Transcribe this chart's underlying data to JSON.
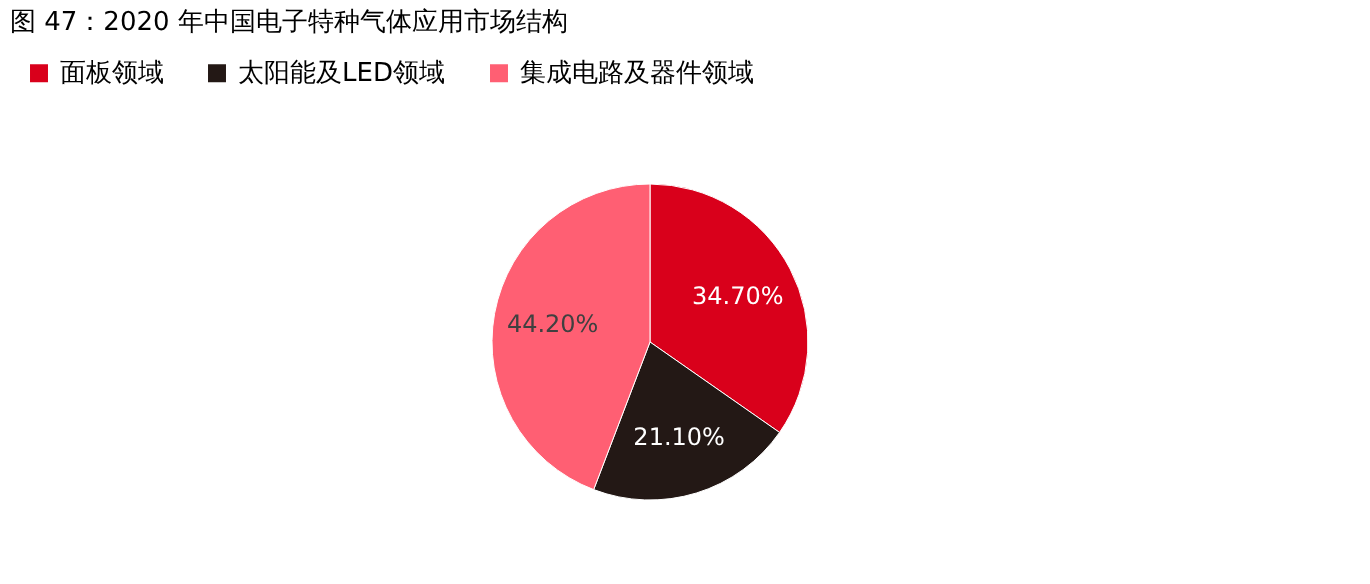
{
  "chart_data": {
    "type": "pie",
    "title": "图 47：2020 年中国电子特种气体应用市场结构",
    "categories": [
      "面板领域",
      "太阳能及LED领域",
      "集成电路及器件领域"
    ],
    "values": [
      34.7,
      21.1,
      44.2
    ],
    "colors": [
      "#d9001b",
      "#231815",
      "#ff5f73"
    ],
    "value_labels": [
      "34.70%",
      "21.10%",
      "44.20%"
    ],
    "legend": "top"
  }
}
